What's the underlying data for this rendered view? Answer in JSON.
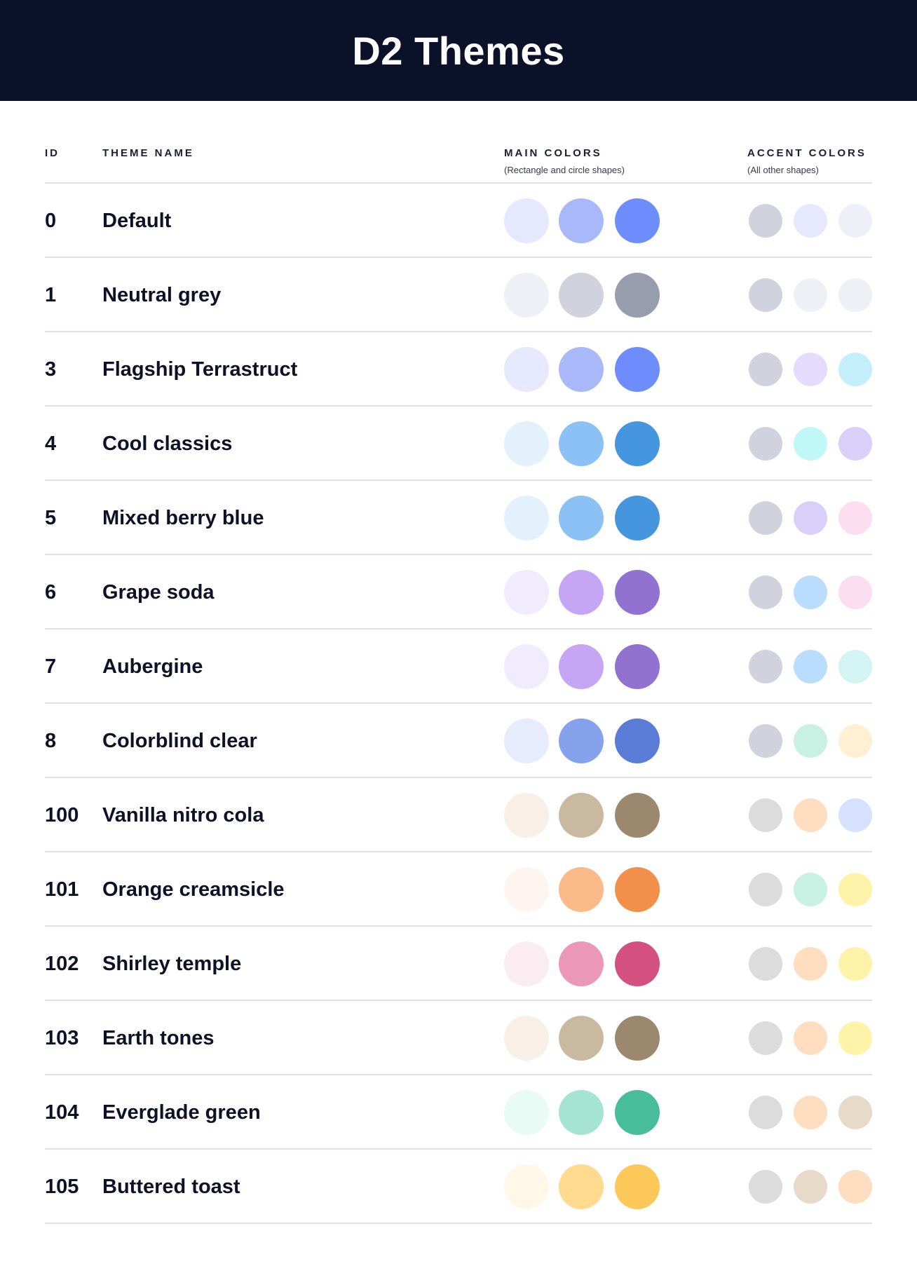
{
  "title": "D2 Themes",
  "columns": {
    "id": "ID",
    "name": "THEME NAME",
    "main": "MAIN COLORS",
    "main_sub": "(Rectangle and circle shapes)",
    "accent": "ACCENT COLORS",
    "accent_sub": "(All other shapes)"
  },
  "themes": [
    {
      "id": "0",
      "name": "Default",
      "main": [
        "#E6E9FD",
        "#A8B8F8",
        "#6D8DFD"
      ],
      "accent": [
        "#D0D2DE",
        "#E6E9FD",
        "#EEF0F8"
      ]
    },
    {
      "id": "1",
      "name": "Neutral grey",
      "main": [
        "#EEF0F6",
        "#D0D2DE",
        "#979DAD"
      ],
      "accent": [
        "#D0D2DE",
        "#EEF0F6",
        "#EEF0F6"
      ]
    },
    {
      "id": "3",
      "name": "Flagship Terrastruct",
      "main": [
        "#E6E9FD",
        "#A8B8F8",
        "#6D8DFD"
      ],
      "accent": [
        "#D0D2DE",
        "#E5DBFD",
        "#C3EEFC"
      ]
    },
    {
      "id": "4",
      "name": "Cool classics",
      "main": [
        "#E3F1FD",
        "#8BC1F4",
        "#4695DF"
      ],
      "accent": [
        "#D0D2DE",
        "#C0F7F7",
        "#DACFF9"
      ]
    },
    {
      "id": "5",
      "name": "Mixed berry blue",
      "main": [
        "#E3F1FD",
        "#8BC1F4",
        "#4695DF"
      ],
      "accent": [
        "#D0D2DE",
        "#DACFF9",
        "#FDDDF0"
      ]
    },
    {
      "id": "6",
      "name": "Grape soda",
      "main": [
        "#F0ECFD",
        "#C5A5F4",
        "#9172D1"
      ],
      "accent": [
        "#D0D2DE",
        "#BADCFD",
        "#FDDDF0"
      ]
    },
    {
      "id": "7",
      "name": "Aubergine",
      "main": [
        "#F0ECFD",
        "#C5A5F4",
        "#9172D1"
      ],
      "accent": [
        "#D0D2DE",
        "#BADCFD",
        "#D4F3F3"
      ]
    },
    {
      "id": "8",
      "name": "Colorblind clear",
      "main": [
        "#E6EBFD",
        "#86A2EC",
        "#5A7BD6"
      ],
      "accent": [
        "#D0D2DE",
        "#C8F1E3",
        "#FFF0D4"
      ]
    },
    {
      "id": "100",
      "name": "Vanilla nitro cola",
      "main": [
        "#F8F0E6",
        "#C9B9A1",
        "#9B886E"
      ],
      "accent": [
        "#DCDCDC",
        "#FFDDC1",
        "#D6E1FD"
      ]
    },
    {
      "id": "101",
      "name": "Orange creamsicle",
      "main": [
        "#FFF5F0",
        "#FABA89",
        "#F28F4A"
      ],
      "accent": [
        "#DCDCDC",
        "#C8F1E3",
        "#FFF3A9"
      ]
    },
    {
      "id": "102",
      "name": "Shirley temple",
      "main": [
        "#FBECF2",
        "#EA98B5",
        "#D4507F"
      ],
      "accent": [
        "#DCDCDC",
        "#FFDDC1",
        "#FFF3A9"
      ]
    },
    {
      "id": "103",
      "name": "Earth tones",
      "main": [
        "#F8F0E6",
        "#C9B9A1",
        "#9B886E"
      ],
      "accent": [
        "#DCDCDC",
        "#FFDDC1",
        "#FFF3A9"
      ]
    },
    {
      "id": "104",
      "name": "Everglade green",
      "main": [
        "#E8FBF4",
        "#A4E4D1",
        "#48BD99"
      ],
      "accent": [
        "#DCDCDC",
        "#FFDDC1",
        "#E8DAC8"
      ]
    },
    {
      "id": "105",
      "name": "Buttered toast",
      "main": [
        "#FFF7E8",
        "#FFDA8F",
        "#FDC85A"
      ],
      "accent": [
        "#DCDCDC",
        "#E8DAC8",
        "#FFDDC1"
      ]
    }
  ]
}
